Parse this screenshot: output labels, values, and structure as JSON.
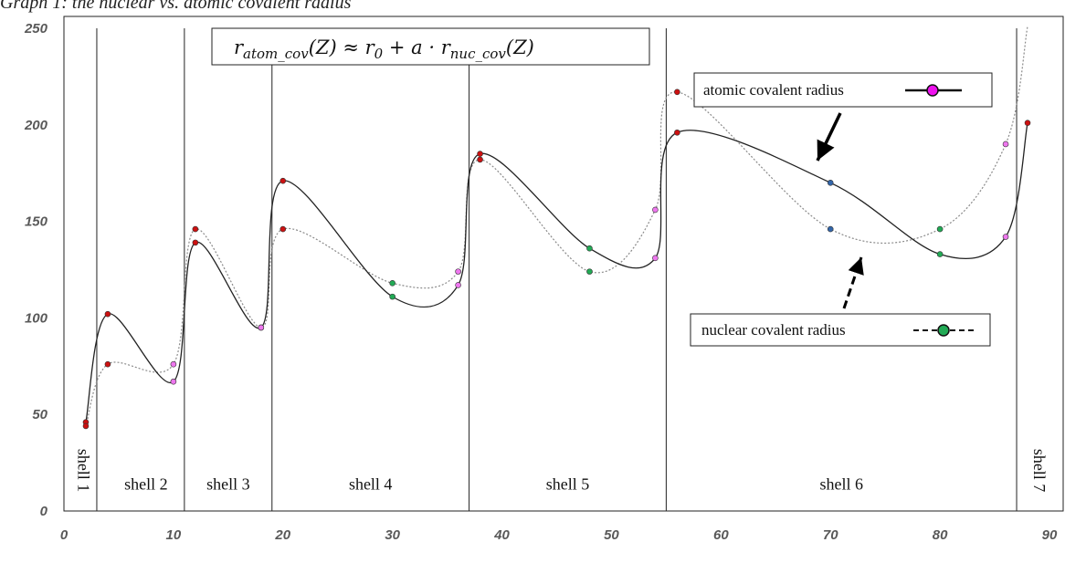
{
  "chart_data": {
    "type": "line",
    "title": "Graph 1: the nuclear vs. atomic covalent radius",
    "formula": {
      "lhs": "r",
      "lhs_sub": "atom_cov",
      "lhs_arg": "(Z) ≈ ",
      "r0": "r",
      "r0_sub": "0",
      "rhs_mid": " + a · r",
      "rhs_sub": "nuc_cov",
      "rhs_arg": "(Z)"
    },
    "xlim": [
      0,
      90
    ],
    "ylim": [
      0,
      250
    ],
    "xticks": [
      "0",
      "10",
      "20",
      "30",
      "40",
      "50",
      "60",
      "70",
      "80",
      "90"
    ],
    "yticks": [
      "0",
      "50",
      "100",
      "150",
      "200",
      "250"
    ],
    "grid": false,
    "shell_boundaries": [
      3,
      11,
      19,
      37,
      55,
      87
    ],
    "shell_labels": [
      {
        "label": "shell 1",
        "vertical": true,
        "x": 1.3,
        "y": 21
      },
      {
        "label": "shell 2",
        "vertical": false,
        "x": 7.5,
        "y": 11
      },
      {
        "label": "shell 3",
        "vertical": false,
        "x": 15,
        "y": 11
      },
      {
        "label": "shell 4",
        "vertical": false,
        "x": 28,
        "y": 11
      },
      {
        "label": "shell 5",
        "vertical": false,
        "x": 46,
        "y": 11
      },
      {
        "label": "shell 6",
        "vertical": false,
        "x": 71,
        "y": 11
      },
      {
        "label": "shell 7",
        "vertical": true,
        "x": 88.6,
        "y": 21
      }
    ],
    "series": [
      {
        "name": "atomic covalent radius",
        "style": "solid",
        "color": "#222222",
        "points": [
          {
            "x": 2,
            "y": 46,
            "c": "#cc1111"
          },
          {
            "x": 4,
            "y": 102,
            "c": "#cc1111"
          },
          {
            "x": 10,
            "y": 67,
            "c": "#ee77ee"
          },
          {
            "x": 12,
            "y": 139,
            "c": "#cc1111"
          },
          {
            "x": 18,
            "y": 95,
            "c": "#ee77ee"
          },
          {
            "x": 20,
            "y": 171,
            "c": "#cc1111"
          },
          {
            "x": 30,
            "y": 111,
            "c": "#22aa55"
          },
          {
            "x": 36,
            "y": 117,
            "c": "#ee77ee"
          },
          {
            "x": 38,
            "y": 185,
            "c": "#cc1111"
          },
          {
            "x": 48,
            "y": 136,
            "c": "#22aa55"
          },
          {
            "x": 54,
            "y": 131,
            "c": "#ee77ee"
          },
          {
            "x": 56,
            "y": 196,
            "c": "#cc1111"
          },
          {
            "x": 70,
            "y": 170,
            "c": "#3366aa"
          },
          {
            "x": 80,
            "y": 133,
            "c": "#22aa55"
          },
          {
            "x": 86,
            "y": 142,
            "c": "#ee77ee"
          },
          {
            "x": 88,
            "y": 201,
            "c": "#cc1111"
          }
        ]
      },
      {
        "name": "nuclear covalent radius",
        "style": "dotted",
        "color": "#8a8a8a",
        "points": [
          {
            "x": 2,
            "y": 44,
            "c": "#cc1111"
          },
          {
            "x": 4,
            "y": 76,
            "c": "#cc1111"
          },
          {
            "x": 10,
            "y": 76,
            "c": "#ee77ee"
          },
          {
            "x": 12,
            "y": 146,
            "c": "#cc1111"
          },
          {
            "x": 18,
            "y": 95,
            "c": "#ee77ee"
          },
          {
            "x": 20,
            "y": 146,
            "c": "#cc1111"
          },
          {
            "x": 30,
            "y": 118,
            "c": "#22aa55"
          },
          {
            "x": 36,
            "y": 124,
            "c": "#ee77ee"
          },
          {
            "x": 38,
            "y": 182,
            "c": "#cc1111"
          },
          {
            "x": 48,
            "y": 124,
            "c": "#22aa55"
          },
          {
            "x": 54,
            "y": 156,
            "c": "#ee77ee"
          },
          {
            "x": 56,
            "y": 217,
            "c": "#cc1111"
          },
          {
            "x": 70,
            "y": 146,
            "c": "#3366aa"
          },
          {
            "x": 80,
            "y": 146,
            "c": "#22aa55"
          },
          {
            "x": 86,
            "y": 190,
            "c": "#ee77ee"
          },
          {
            "x": 88,
            "y": 251,
            "c": null
          }
        ]
      }
    ],
    "legend": [
      {
        "label": "atomic covalent radius",
        "line": "solid",
        "marker_color": "#ee11ee"
      },
      {
        "label": "nuclear covalent radius",
        "line": "dashed",
        "marker_color": "#22aa55"
      }
    ]
  }
}
